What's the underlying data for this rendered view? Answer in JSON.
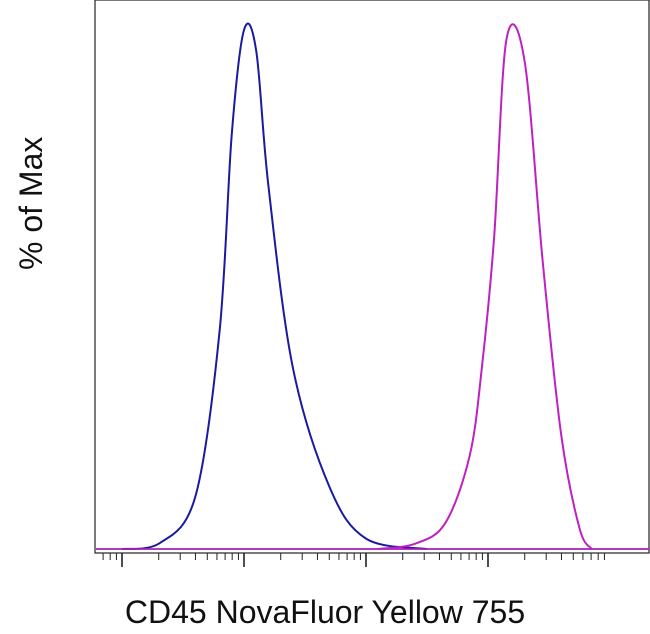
{
  "chart_data": {
    "type": "line",
    "title": "",
    "xlabel": "CD45 NovaFluor Yellow 755",
    "ylabel": "% of Max",
    "x_scale": "log",
    "ylim": [
      0,
      100
    ],
    "grid": false,
    "legend": "none",
    "series": [
      {
        "color": "#1a1aa0",
        "x": [
          1.0,
          1.3,
          1.6,
          1.8,
          1.9,
          2.0,
          2.1,
          2.2,
          2.4,
          2.7,
          3.0,
          3.5
        ],
        "y": [
          0,
          1,
          10,
          42,
          80,
          100,
          96,
          70,
          35,
          12,
          2,
          0
        ]
      },
      {
        "color": "#c020c0",
        "x": [
          3.1,
          3.4,
          3.65,
          3.85,
          3.95,
          4.05,
          4.15,
          4.3,
          4.45,
          4.6,
          4.75,
          4.85
        ],
        "y": [
          0,
          1,
          5,
          18,
          35,
          60,
          98,
          94,
          55,
          22,
          4,
          0
        ]
      }
    ]
  }
}
